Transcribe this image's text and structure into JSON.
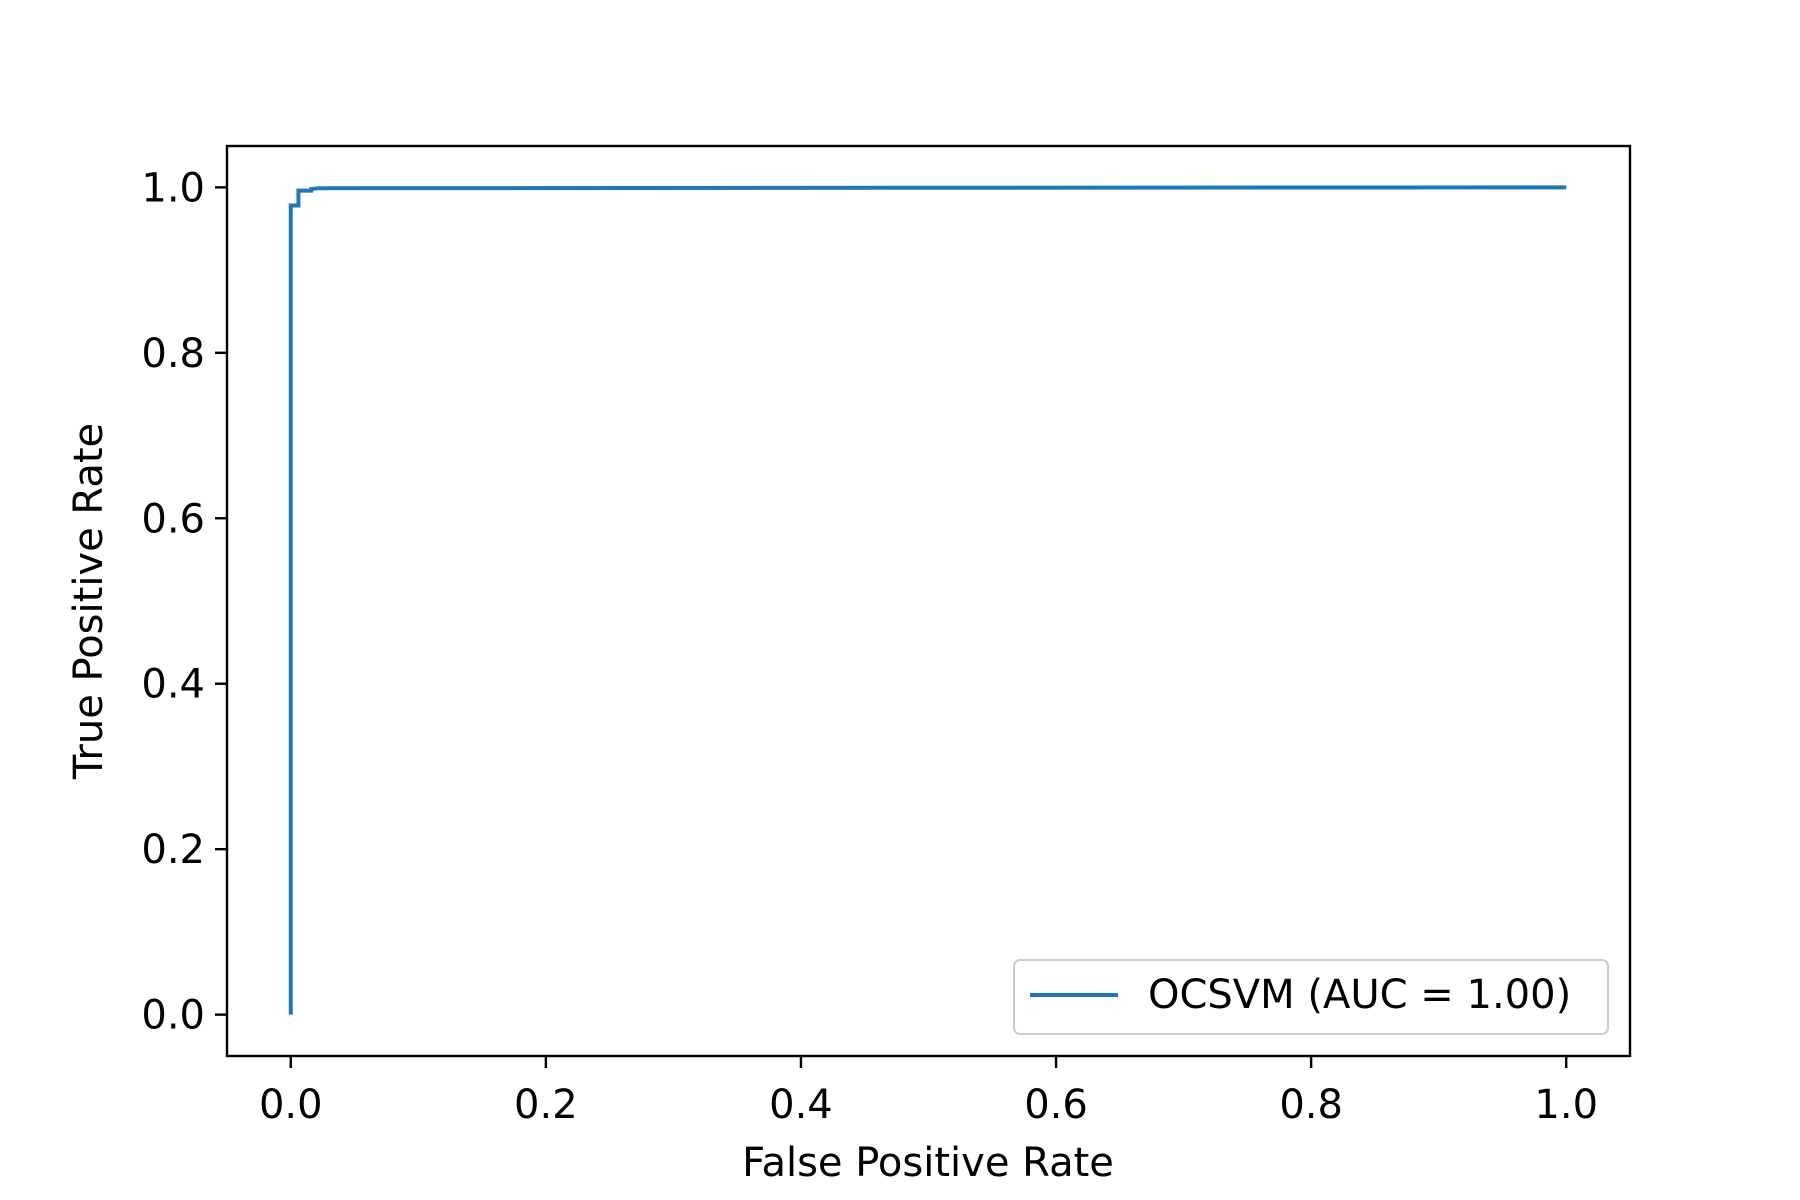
{
  "chart_data": {
    "type": "line",
    "title": "",
    "xlabel": "False Positive Rate",
    "ylabel": "True Positive Rate",
    "xlim": [
      -0.05,
      1.05
    ],
    "ylim": [
      -0.05,
      1.05
    ],
    "xticks": [
      0.0,
      0.2,
      0.4,
      0.6,
      0.8,
      1.0
    ],
    "yticks": [
      0.0,
      0.2,
      0.4,
      0.6,
      0.8,
      1.0
    ],
    "xtick_labels": [
      "0.0",
      "0.2",
      "0.4",
      "0.6",
      "0.8",
      "1.0"
    ],
    "ytick_labels": [
      "0.0",
      "0.2",
      "0.4",
      "0.6",
      "0.8",
      "1.0"
    ],
    "grid": false,
    "legend_position": "lower-right",
    "series": [
      {
        "name": "OCSVM (AUC = 1.00)",
        "color": "#1f77b4",
        "x": [
          0.0,
          0.0,
          0.006,
          0.006,
          0.016,
          0.016,
          0.022,
          1.0
        ],
        "y": [
          0.0,
          0.978,
          0.978,
          0.996,
          0.996,
          0.998,
          0.999,
          1.0
        ]
      }
    ]
  }
}
